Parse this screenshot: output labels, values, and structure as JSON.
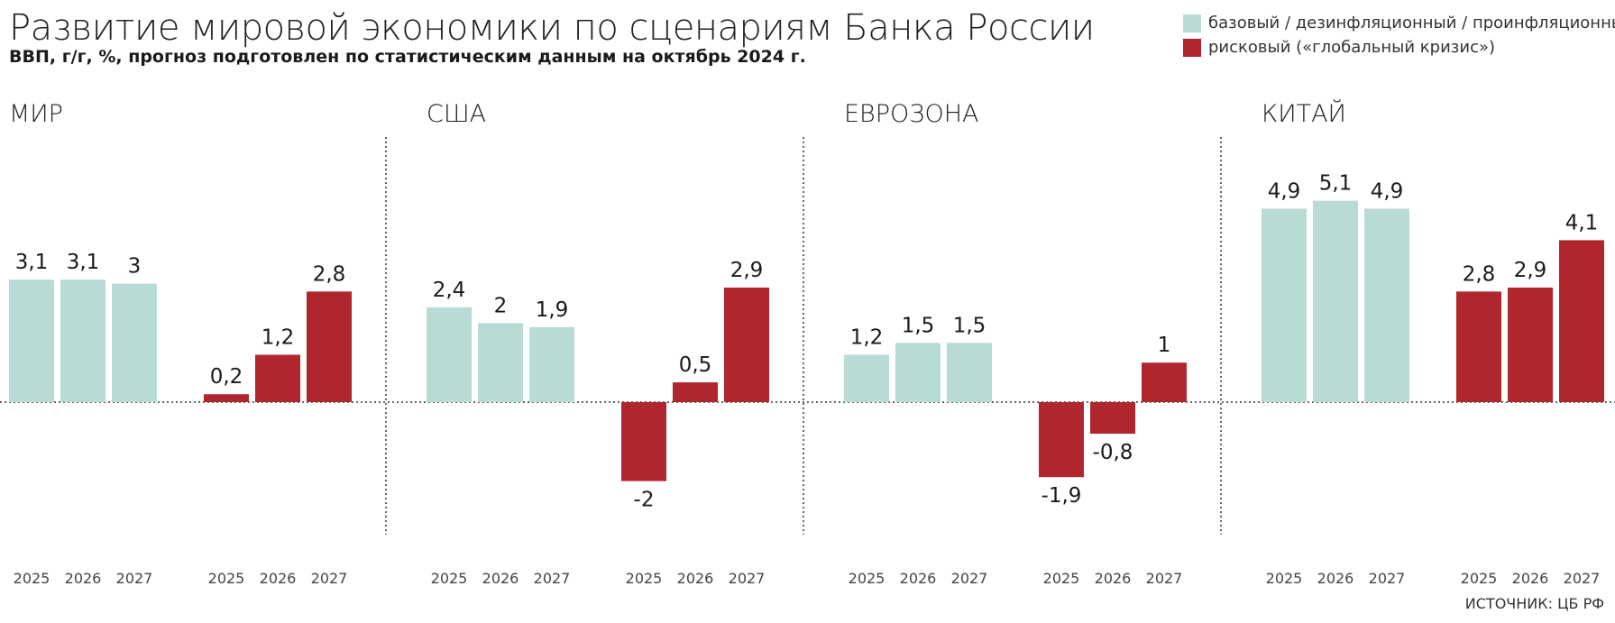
{
  "title": "Развитие мировой экономики по сценариям Банка России",
  "subtitle": "ВВП, г/г, %, прогноз подготовлен по статистическим данным на октябрь 2024 г.",
  "legend": {
    "base": "базовый / дезинфляционный / проинфляционный",
    "risk": "рисковый («глобальный кризис»)"
  },
  "source": "ИСТОЧНИК: ЦБ РФ",
  "colors": {
    "base": "#b8dcd5",
    "risk": "#b0262f"
  },
  "chart_data": [
    {
      "type": "bar",
      "title": "МИР",
      "categories": [
        "2025",
        "2026",
        "2027"
      ],
      "series": [
        {
          "name": "базовый / дезинфляционный / проинфляционный",
          "values": [
            3.1,
            3.1,
            3
          ],
          "labels": [
            "3,1",
            "3,1",
            "3"
          ]
        },
        {
          "name": "рисковый («глобальный кризис»)",
          "values": [
            0.2,
            1.2,
            2.8
          ],
          "labels": [
            "0,2",
            "1,2",
            "2,8"
          ]
        }
      ]
    },
    {
      "type": "bar",
      "title": "США",
      "categories": [
        "2025",
        "2026",
        "2027"
      ],
      "series": [
        {
          "name": "базовый / дезинфляционный / проинфляционный",
          "values": [
            2.4,
            2,
            1.9
          ],
          "labels": [
            "2,4",
            "2",
            "1,9"
          ]
        },
        {
          "name": "рисковый («глобальный кризис»)",
          "values": [
            -2,
            0.5,
            2.9
          ],
          "labels": [
            "-2",
            "0,5",
            "2,9"
          ]
        }
      ]
    },
    {
      "type": "bar",
      "title": "ЕВРОЗОНА",
      "categories": [
        "2025",
        "2026",
        "2027"
      ],
      "series": [
        {
          "name": "базовый / дезинфляционный / проинфляционный",
          "values": [
            1.2,
            1.5,
            1.5
          ],
          "labels": [
            "1,2",
            "1,5",
            "1,5"
          ]
        },
        {
          "name": "рисковый («глобальный кризис»)",
          "values": [
            -1.9,
            -0.8,
            1
          ],
          "labels": [
            "-1,9",
            "-0,8",
            "1"
          ]
        }
      ]
    },
    {
      "type": "bar",
      "title": "КИТАЙ",
      "categories": [
        "2025",
        "2026",
        "2027"
      ],
      "series": [
        {
          "name": "базовый / дезинфляционный / проинфляционный",
          "values": [
            4.9,
            5.1,
            4.9
          ],
          "labels": [
            "4,9",
            "5,1",
            "4,9"
          ]
        },
        {
          "name": "рисковый («глобальный кризис»)",
          "values": [
            2.8,
            2.9,
            4.1
          ],
          "labels": [
            "2,8",
            "2,9",
            "4,1"
          ]
        }
      ]
    }
  ]
}
